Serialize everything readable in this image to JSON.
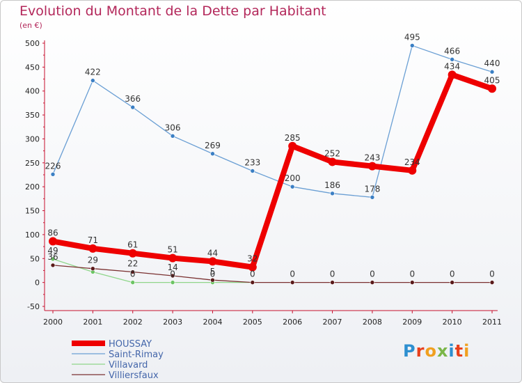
{
  "header": {
    "title": "Evolution du Montant de la Dette par Habitant",
    "unit": "(en €)"
  },
  "logo": {
    "text": "Proxiti",
    "colors": [
      "#2d8fd0",
      "#e8401c",
      "#f0a020",
      "#7ab648",
      "#2d8fd0",
      "#e8401c",
      "#f0a020"
    ]
  },
  "chart_data": {
    "type": "line",
    "title": "Evolution du Montant de la Dette par Habitant",
    "ylabel": "(en €)",
    "xlabel": "",
    "x": [
      "2000",
      "2001",
      "2002",
      "2003",
      "2004",
      "2005",
      "2006",
      "2007",
      "2008",
      "2009",
      "2010",
      "2011"
    ],
    "ylim": [
      -50,
      500
    ],
    "yticks": [
      "-50",
      "0",
      "50",
      "100",
      "150",
      "200",
      "250",
      "300",
      "350",
      "400",
      "450",
      "500"
    ],
    "grid": false,
    "legend": "bottom-left",
    "series": [
      {
        "name": "Saint-Rimay",
        "color": "#6a9fd4",
        "point_color": "#3b7fc4",
        "values": [
          226,
          422,
          366,
          306,
          269,
          233,
          200,
          186,
          178,
          495,
          466,
          440
        ],
        "labels": [
          "226",
          "422",
          "366",
          "306",
          "269",
          "233",
          "200",
          "186",
          "178",
          "495",
          "466",
          "440"
        ]
      },
      {
        "name": "Villavard",
        "color": "#8fd68a",
        "point_color": "#6cc464",
        "values": [
          49,
          22,
          0,
          0,
          0,
          0,
          null,
          null,
          null,
          null,
          null,
          null
        ],
        "labels": [
          "49",
          "",
          "0",
          "0",
          "0",
          "",
          "",
          "",
          "",
          "",
          "",
          ""
        ]
      },
      {
        "name": "Villiersfaux",
        "color": "#7a3030",
        "point_color": "#5a1a1a",
        "values": [
          36,
          29,
          22,
          14,
          5,
          0,
          0,
          0,
          0,
          0,
          0,
          0
        ],
        "labels": [
          "36",
          "29",
          "22",
          "14",
          "5",
          "0",
          "0",
          "0",
          "0",
          "0",
          "0",
          "0"
        ]
      },
      {
        "name": "HOUSSAY",
        "color": "#ee0000",
        "point_color": "#ee0000",
        "values": [
          86,
          71,
          61,
          51,
          44,
          32,
          285,
          252,
          243,
          234,
          434,
          405
        ],
        "labels": [
          "86",
          "71",
          "61",
          "51",
          "44",
          "32",
          "285",
          "252",
          "243",
          "234",
          "434",
          "405"
        ]
      }
    ],
    "legend_order": [
      "HOUSSAY",
      "Saint-Rimay",
      "Villavard",
      "Villiersfaux"
    ]
  }
}
